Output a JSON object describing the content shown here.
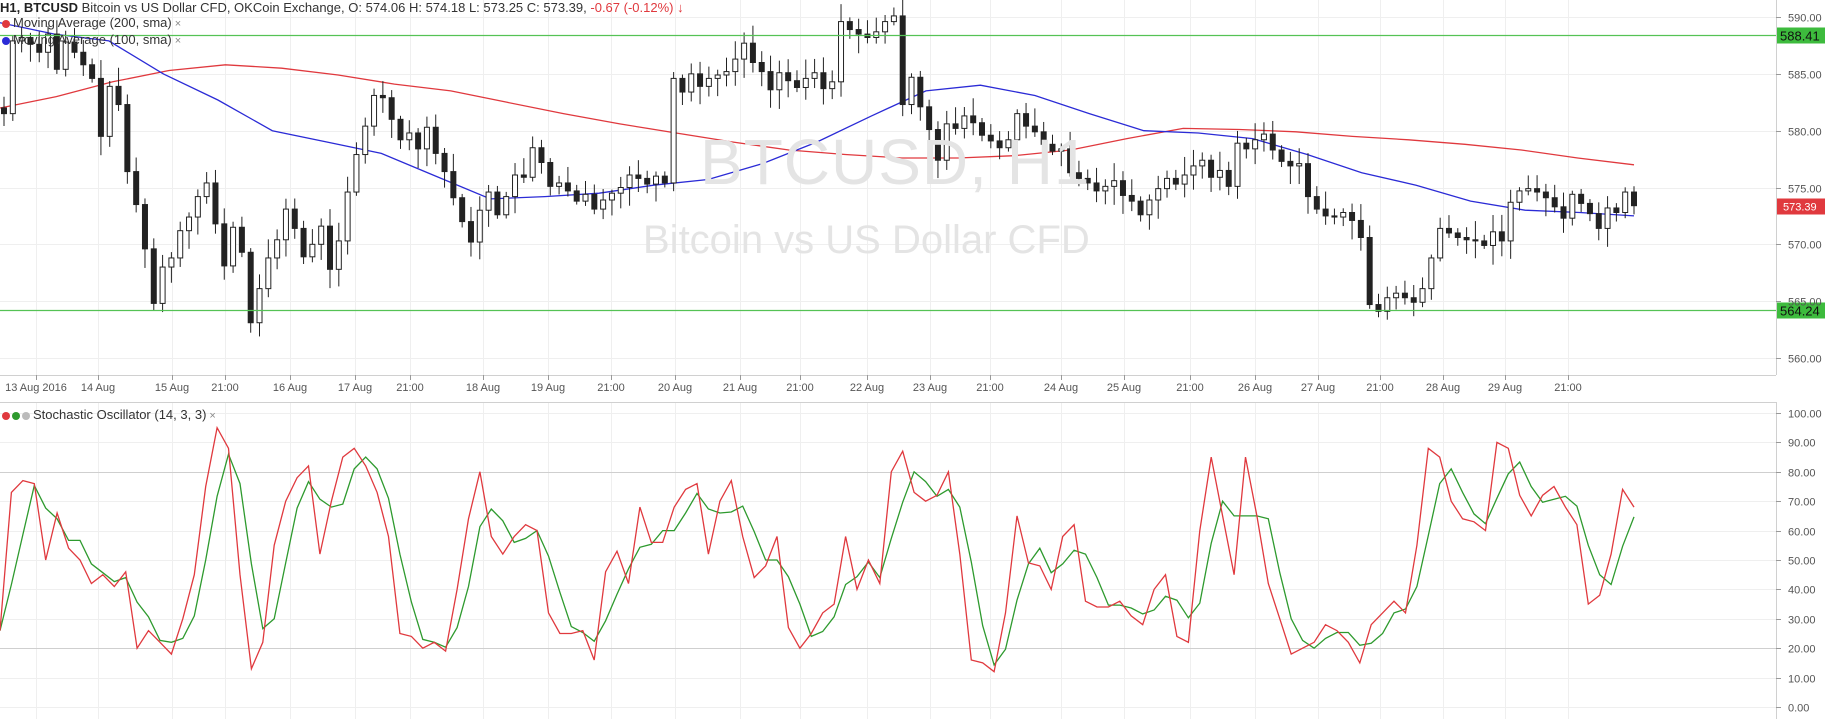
{
  "header": {
    "symbol": "H1, BTCUSD",
    "description": "Bitcoin vs US Dollar CFD, OKCoin Exchange,",
    "ohlc": "O: 574.06 H: 574.18 L: 573.25 C: 573.39,",
    "change": "-0.67 (-0.12%)",
    "change_arrow": "↓"
  },
  "indicators": {
    "ma200": {
      "label": "Moving Average (200, sma)",
      "color": "#e0393e"
    },
    "ma100": {
      "label": "Moving Average (100, sma)",
      "color": "#2b2bd6"
    },
    "stoch": {
      "label": "Stochastic Oscillator (14, 3, 3)",
      "k_color": "#e0393e",
      "d_color": "#2e9a2e"
    },
    "close_glyph": "×"
  },
  "watermark": {
    "title": "BTCUSD, H1",
    "subtitle": "Bitcoin vs US Dollar CFD"
  },
  "colors": {
    "level_line": "#55c255",
    "level_label_bg": "#3dbb3d",
    "price_label_bg": "#e0393e",
    "candle": "#222222"
  },
  "price_axis": {
    "ticks": [
      "590.00",
      "585.00",
      "580.00",
      "575.00",
      "570.00",
      "565.00",
      "560.00"
    ],
    "levels": [
      "588.41",
      "564.24"
    ],
    "current": "573.39"
  },
  "time_axis": {
    "labels": [
      "13 Aug 2016",
      "14 Aug",
      "15 Aug",
      "21:00",
      "16 Aug",
      "17 Aug",
      "21:00",
      "18 Aug",
      "19 Aug",
      "21:00",
      "20 Aug",
      "21 Aug",
      "21:00",
      "22 Aug",
      "23 Aug",
      "21:00",
      "24 Aug",
      "25 Aug",
      "21:00",
      "26 Aug",
      "27 Aug",
      "21:00",
      "28 Aug",
      "29 Aug",
      "21:00"
    ]
  },
  "stoch_axis": {
    "ticks": [
      "100.00",
      "90.00",
      "80.00",
      "70.00",
      "60.00",
      "50.00",
      "40.00",
      "30.00",
      "20.00",
      "10.00",
      "0.00"
    ]
  },
  "chart_data": {
    "type": "candlestick",
    "ylim": [
      558.5,
      591.5
    ],
    "levels": [
      588.41,
      564.24
    ],
    "last": 573.39,
    "closes": [
      581.5,
      587.9,
      588.2,
      587.6,
      586.9,
      588.5,
      585.4,
      587.8,
      586.9,
      585.8,
      584.6,
      579.5,
      583.9,
      582.3,
      576.4,
      573.5,
      569.6,
      564.8,
      568.0,
      568.8,
      571.2,
      572.4,
      574.2,
      575.4,
      571.8,
      568.1,
      571.5,
      569.3,
      563.1,
      566.1,
      568.8,
      570.4,
      573.1,
      571.4,
      568.9,
      570.0,
      571.6,
      567.8,
      570.3,
      574.6,
      577.9,
      580.4,
      583.1,
      582.9,
      581.0,
      579.2,
      579.8,
      578.4,
      580.3,
      578.0,
      576.4,
      574.1,
      572.0,
      570.2,
      573.0,
      574.6,
      572.6,
      574.2,
      576.1,
      575.9,
      578.5,
      577.2,
      575.1,
      575.4,
      574.7,
      573.8,
      574.4,
      573.1,
      573.9,
      574.5,
      575.0,
      576.1,
      575.8,
      575.3,
      576.0,
      575.4,
      584.6,
      583.4,
      585.0,
      583.9,
      584.6,
      584.9,
      585.2,
      586.3,
      587.7,
      586.0,
      585.2,
      583.6,
      585.1,
      584.4,
      583.8,
      584.6,
      585.1,
      583.7,
      584.3,
      589.6,
      588.9,
      588.5,
      588.2,
      588.7,
      589.6,
      590.1,
      582.3,
      584.7,
      582.1,
      580.1,
      577.4,
      580.6,
      580.2,
      581.3,
      580.7,
      579.6,
      579.1,
      578.5,
      579.2,
      581.5,
      580.4,
      579.9,
      578.8,
      578.2,
      578.4,
      576.3,
      575.8,
      575.4,
      574.7,
      575.1,
      575.6,
      574.3,
      573.8,
      572.6,
      573.9,
      574.9,
      575.8,
      575.3,
      576.1,
      576.9,
      577.4,
      575.9,
      576.5,
      575.1,
      578.9,
      578.4,
      579.2,
      579.7,
      578.3,
      577.3,
      576.9,
      577.1,
      574.2,
      573.1,
      572.5,
      572.4,
      572.8,
      572.1,
      570.6,
      564.7,
      564.1,
      565.3,
      565.7,
      565.3,
      564.9,
      566.1,
      568.8,
      571.4,
      571.0,
      570.6,
      570.4,
      570.3,
      569.9,
      571.1,
      570.3,
      573.7,
      574.7,
      574.9,
      574.6,
      574.1,
      573.3,
      572.3,
      574.4,
      573.6,
      572.7,
      571.4,
      573.2,
      572.8,
      574.6,
      573.4
    ],
    "ma200": [
      582.0,
      583.0,
      584.3,
      585.3,
      585.8,
      585.5,
      584.9,
      584.1,
      583.5,
      582.5,
      581.5,
      580.6,
      579.8,
      579.0,
      578.3,
      577.9,
      577.6,
      577.6,
      577.8,
      578.3,
      579.3,
      580.2,
      580.1,
      579.9,
      579.5,
      579.2,
      578.8,
      578.3,
      577.6,
      577.0
    ],
    "ma100": [
      589.5,
      588.5,
      587.9,
      585.0,
      582.7,
      580.0,
      579.0,
      578.0,
      576.0,
      574.0,
      574.2,
      574.5,
      575.2,
      575.7,
      577.1,
      579.0,
      581.3,
      583.5,
      584.0,
      583.1,
      581.5,
      580.0,
      579.8,
      579.3,
      577.9,
      576.3,
      575.2,
      573.8,
      573.0,
      572.8,
      572.5
    ],
    "stoch_k": [
      26,
      73,
      77,
      76,
      50,
      66,
      54,
      50,
      42,
      45,
      41,
      46,
      20,
      26,
      22,
      18,
      30,
      45,
      75,
      95,
      88,
      45,
      13,
      22,
      55,
      70,
      78,
      82,
      52,
      70,
      85,
      88,
      82,
      73,
      58,
      25,
      24,
      20,
      22,
      19,
      40,
      64,
      80,
      58,
      52,
      58,
      62,
      60,
      32,
      25,
      25,
      26,
      16,
      46,
      53,
      42,
      68,
      56,
      56,
      68,
      74,
      76,
      52,
      70,
      77,
      58,
      44,
      48,
      58,
      27,
      20,
      25,
      32,
      35,
      58,
      40,
      50,
      42,
      80,
      87,
      73,
      70,
      72,
      80,
      52,
      16,
      15,
      12,
      32,
      65,
      49,
      48,
      40,
      58,
      62,
      36,
      34,
      34,
      36,
      31,
      28,
      40,
      45,
      24,
      22,
      60,
      85,
      65,
      45,
      85,
      65,
      42,
      30,
      18,
      20,
      22,
      28,
      26,
      22,
      15,
      28,
      32,
      36,
      32,
      55,
      88,
      85,
      70,
      64,
      63,
      60,
      90,
      88,
      72,
      65,
      72,
      75,
      68,
      62,
      35,
      38,
      52,
      74,
      68
    ]
  },
  "labels": {
    "w0": "BTCUSD, H1",
    "w1": "Bitcoin vs US Dollar CFD"
  }
}
